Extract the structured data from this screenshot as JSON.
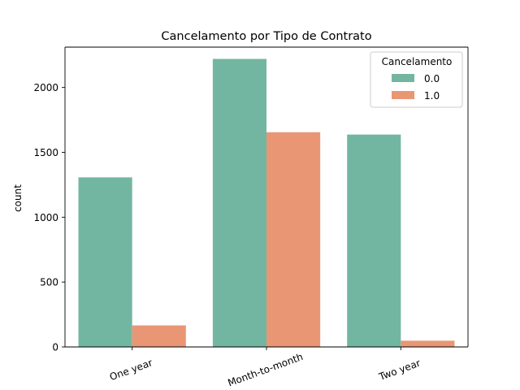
{
  "chart_data": {
    "type": "bar",
    "title": "Cancelamento por Tipo de Contrato",
    "xlabel": "",
    "ylabel": "count",
    "categories": [
      "One year",
      "Month-to-month",
      "Two year"
    ],
    "series": [
      {
        "name": "0.0",
        "values": [
          1307,
          2220,
          1637
        ],
        "color": "#72b6a1"
      },
      {
        "name": "1.0",
        "values": [
          166,
          1655,
          48
        ],
        "color": "#e99675"
      }
    ],
    "ylim": [
      0,
      2311
    ],
    "yticks": [
      0,
      500,
      1000,
      1500,
      2000
    ],
    "legend": {
      "title": "Cancelamento",
      "location": "top-right"
    },
    "grid": false
  }
}
